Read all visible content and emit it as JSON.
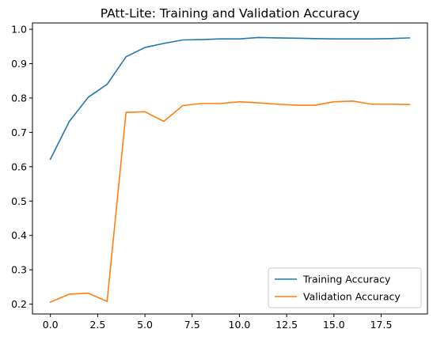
{
  "chart_data": {
    "type": "line",
    "title": "PAtt-Lite: Training and Validation Accuracy",
    "xlabel": "",
    "ylabel": "",
    "xlim": [
      -0.95,
      19.95
    ],
    "ylim": [
      0.1715,
      1.0185
    ],
    "xticks": [
      0.0,
      2.5,
      5.0,
      7.5,
      10.0,
      12.5,
      15.0,
      17.5
    ],
    "xtick_labels": [
      "0.0",
      "2.5",
      "5.0",
      "7.5",
      "10.0",
      "12.5",
      "15.0",
      "17.5"
    ],
    "yticks": [
      0.2,
      0.3,
      0.4,
      0.5,
      0.6,
      0.7,
      0.8,
      0.9,
      1.0
    ],
    "ytick_labels": [
      "0.2",
      "0.3",
      "0.4",
      "0.5",
      "0.6",
      "0.7",
      "0.8",
      "0.9",
      "1.0"
    ],
    "x": [
      0,
      1,
      2,
      3,
      4,
      5,
      6,
      7,
      8,
      9,
      10,
      11,
      12,
      13,
      14,
      15,
      16,
      17,
      18,
      19
    ],
    "series": [
      {
        "name": "Training Accuracy",
        "color": "#1f77b4",
        "values": [
          0.622,
          0.732,
          0.802,
          0.84,
          0.92,
          0.947,
          0.959,
          0.969,
          0.97,
          0.972,
          0.972,
          0.976,
          0.975,
          0.974,
          0.973,
          0.972,
          0.972,
          0.972,
          0.973,
          0.975
        ]
      },
      {
        "name": "Validation Accuracy",
        "color": "#ff7f0e",
        "values": [
          0.206,
          0.229,
          0.232,
          0.208,
          0.758,
          0.76,
          0.732,
          0.778,
          0.784,
          0.784,
          0.789,
          0.786,
          0.782,
          0.779,
          0.779,
          0.789,
          0.791,
          0.782,
          0.782,
          0.781
        ]
      }
    ],
    "grid": false,
    "legend_position": "lower-right"
  }
}
